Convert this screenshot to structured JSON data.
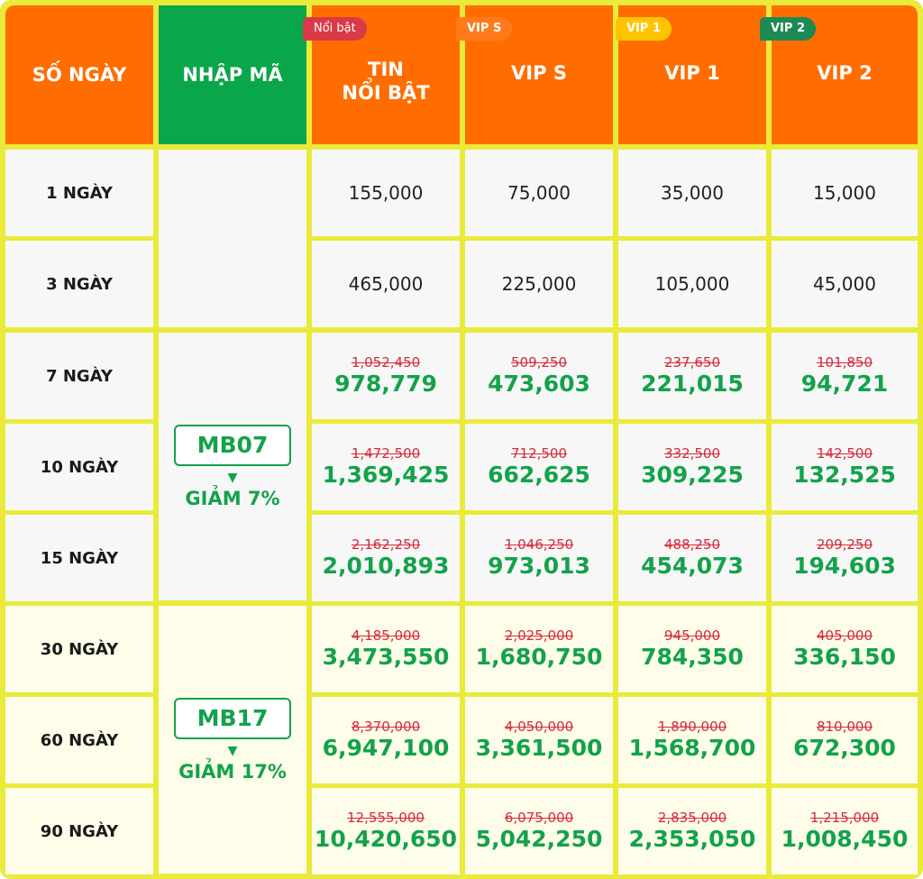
{
  "headers": {
    "days": "SỐ NGÀY",
    "code": "NHẬP MÃ",
    "tin_noi_bat": [
      "TIN",
      "NỔI BẬT"
    ],
    "vip_s": "VIP S",
    "vip_1": "VIP 1",
    "vip_2": "VIP 2"
  },
  "tags": {
    "noi_bat": {
      "label": "Nổi bật",
      "color": "#d93a48"
    },
    "vip_s": {
      "label": "VIP S",
      "color": "#ff7a1a"
    },
    "vip_1": {
      "label": "VIP 1",
      "color": "#ffc400"
    },
    "vip_2": {
      "label": "VIP 2",
      "color": "#1d8a53"
    }
  },
  "colors": {
    "header_orange": "#ff6d00",
    "header_green": "#0aa64a",
    "border": "#e9ea3a",
    "new_price": "#13a24b",
    "old_price": "#d42a3a"
  },
  "codes": [
    {
      "code": "MB07",
      "arrow_icon": "triangle-down-icon",
      "discount": "GIẢM 7%"
    },
    {
      "code": "MB17",
      "arrow_icon": "triangle-down-icon",
      "discount": "GIẢM 17%"
    }
  ],
  "rows": [
    {
      "days": "1 NGÀY",
      "prices": [
        "155,000",
        "75,000",
        "35,000",
        "15,000"
      ]
    },
    {
      "days": "3 NGÀY",
      "prices": [
        "465,000",
        "225,000",
        "105,000",
        "45,000"
      ]
    },
    {
      "days": "7 NGÀY",
      "old": [
        "1,052,450",
        "509,250",
        "237,650",
        "101,850"
      ],
      "new": [
        "978,779",
        "473,603",
        "221,015",
        "94,721"
      ]
    },
    {
      "days": "10 NGÀY",
      "old": [
        "1,472,500",
        "712,500",
        "332,500",
        "142,500"
      ],
      "new": [
        "1,369,425",
        "662,625",
        "309,225",
        "132,525"
      ]
    },
    {
      "days": "15 NGÀY",
      "old": [
        "2,162,250",
        "1,046,250",
        "488,250",
        "209,250"
      ],
      "new": [
        "2,010,893",
        "973,013",
        "454,073",
        "194,603"
      ]
    },
    {
      "days": "30 NGÀY",
      "old": [
        "4,185,000",
        "2,025,000",
        "945,000",
        "405,000"
      ],
      "new": [
        "3,473,550",
        "1,680,750",
        "784,350",
        "336,150"
      ]
    },
    {
      "days": "60 NGÀY",
      "old": [
        "8,370,000",
        "4,050,000",
        "1,890,000",
        "810,000"
      ],
      "new": [
        "6,947,100",
        "3,361,500",
        "1,568,700",
        "672,300"
      ]
    },
    {
      "days": "90 NGÀY",
      "old": [
        "12,555,000",
        "6,075,000",
        "2,835,000",
        "1,215,000"
      ],
      "new": [
        "10,420,650",
        "5,042,250",
        "2,353,050",
        "1,008,450"
      ]
    }
  ]
}
